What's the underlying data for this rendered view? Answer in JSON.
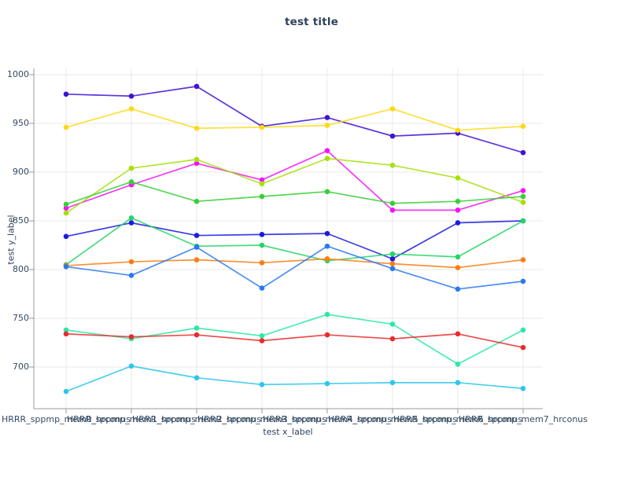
{
  "chart_data": {
    "type": "line",
    "title": "test title",
    "xlabel": "test x_label",
    "ylabel": "test y_label",
    "categories": [
      "HRRR_sppmp_mem0_hrconus",
      "HRRR_sppmp_mem1_hrconus",
      "HRRR_sppmp_mem2_hrconus",
      "HRRR_sppmp_mem3_hrconus",
      "HRRR_sppmp_mem4_hrconus",
      "HRRR_sppmp_mem5_hrconus",
      "HRRR_sppmp_mem6_hrconus",
      "HRRR_sppmp_mem7_hrconus"
    ],
    "y_ticks": [
      1000,
      950,
      900,
      850,
      800,
      750,
      700
    ],
    "ylim": [
      657,
      1006
    ],
    "grid": true,
    "legend_position": "none",
    "marker": "circle",
    "series": [
      {
        "name": "indigo",
        "color": "#3e13d2",
        "values": [
          980,
          978,
          988,
          947,
          956,
          937,
          940,
          920
        ]
      },
      {
        "name": "gold",
        "color": "#ffd914",
        "values": [
          946,
          965,
          945,
          946,
          948,
          965,
          943,
          947
        ]
      },
      {
        "name": "magenta",
        "color": "#f414f4",
        "values": [
          863,
          887,
          909,
          892,
          922,
          861,
          861,
          881
        ]
      },
      {
        "name": "chartreuse",
        "color": "#a6e006",
        "values": [
          858,
          904,
          913,
          888,
          914,
          907,
          894,
          869
        ]
      },
      {
        "name": "green",
        "color": "#37cf37",
        "values": [
          867,
          890,
          870,
          875,
          880,
          868,
          870,
          875
        ]
      },
      {
        "name": "blue",
        "color": "#1a1ae0",
        "values": [
          834,
          848,
          835,
          836,
          837,
          811,
          848,
          850
        ]
      },
      {
        "name": "spring-green",
        "color": "#24d565",
        "values": [
          805,
          853,
          824,
          825,
          809,
          816,
          813,
          850
        ]
      },
      {
        "name": "orange",
        "color": "#fb7e14",
        "values": [
          804,
          808,
          810,
          807,
          811,
          806,
          802,
          810
        ]
      },
      {
        "name": "dodger-blue",
        "color": "#2a79f2",
        "values": [
          803,
          794,
          823,
          781,
          824,
          801,
          780,
          788
        ]
      },
      {
        "name": "turquoise",
        "color": "#2ae8a8",
        "values": [
          738,
          729,
          740,
          732,
          754,
          744,
          703,
          738
        ]
      },
      {
        "name": "red",
        "color": "#ea2b2b",
        "values": [
          734,
          731,
          733,
          727,
          733,
          729,
          734,
          720
        ]
      },
      {
        "name": "sky-blue",
        "color": "#2cc6ec",
        "values": [
          675,
          701,
          689,
          682,
          683,
          684,
          684,
          678
        ]
      }
    ],
    "axis_colors": {
      "spine": "#9a9a9a",
      "grid": "#e8e8e8",
      "tick_label": "#344a62",
      "title": "#2d4159"
    }
  }
}
